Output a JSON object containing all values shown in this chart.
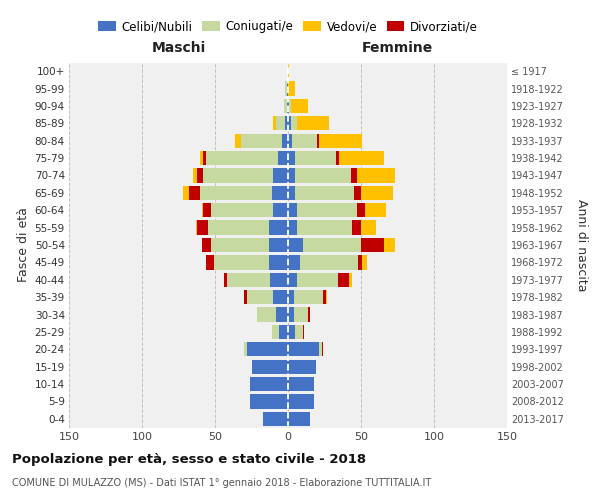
{
  "age_groups": [
    "0-4",
    "5-9",
    "10-14",
    "15-19",
    "20-24",
    "25-29",
    "30-34",
    "35-39",
    "40-44",
    "45-49",
    "50-54",
    "55-59",
    "60-64",
    "65-69",
    "70-74",
    "75-79",
    "80-84",
    "85-89",
    "90-94",
    "95-99",
    "100+"
  ],
  "birth_years": [
    "2013-2017",
    "2008-2012",
    "2003-2007",
    "1998-2002",
    "1993-1997",
    "1988-1992",
    "1983-1987",
    "1978-1982",
    "1973-1977",
    "1968-1972",
    "1963-1967",
    "1958-1962",
    "1953-1957",
    "1948-1952",
    "1943-1947",
    "1938-1942",
    "1933-1937",
    "1928-1932",
    "1923-1927",
    "1918-1922",
    "≤ 1917"
  ],
  "maschi": {
    "celibi": [
      17,
      26,
      26,
      25,
      28,
      6,
      8,
      10,
      12,
      13,
      13,
      13,
      10,
      11,
      10,
      7,
      4,
      2,
      1,
      1,
      0
    ],
    "coniugati": [
      0,
      0,
      0,
      0,
      2,
      5,
      13,
      18,
      30,
      38,
      40,
      42,
      43,
      49,
      48,
      49,
      28,
      6,
      2,
      1,
      0
    ],
    "vedovi": [
      0,
      0,
      0,
      0,
      0,
      0,
      0,
      0,
      0,
      0,
      0,
      1,
      1,
      4,
      3,
      2,
      4,
      2,
      0,
      0,
      0
    ],
    "divorziati": [
      0,
      0,
      0,
      0,
      0,
      0,
      0,
      2,
      2,
      5,
      6,
      7,
      5,
      8,
      4,
      2,
      0,
      0,
      0,
      0,
      0
    ]
  },
  "femmine": {
    "nubili": [
      15,
      18,
      18,
      19,
      21,
      5,
      4,
      4,
      6,
      8,
      10,
      6,
      6,
      5,
      5,
      5,
      3,
      2,
      1,
      0,
      0
    ],
    "coniugate": [
      0,
      0,
      0,
      0,
      2,
      5,
      10,
      20,
      28,
      40,
      40,
      38,
      41,
      40,
      38,
      28,
      17,
      4,
      1,
      0,
      0
    ],
    "vedove": [
      0,
      0,
      0,
      0,
      0,
      0,
      0,
      1,
      2,
      3,
      7,
      10,
      14,
      22,
      26,
      31,
      30,
      22,
      12,
      5,
      1
    ],
    "divorziate": [
      0,
      0,
      0,
      0,
      1,
      1,
      1,
      2,
      8,
      3,
      16,
      6,
      6,
      5,
      4,
      2,
      1,
      0,
      0,
      0,
      0
    ]
  },
  "colors": {
    "celibi": "#4472c4",
    "coniugati": "#c5d9a0",
    "vedovi": "#ffc000",
    "divorziati": "#c00000"
  },
  "legend_labels": [
    "Celibi/Nubili",
    "Coniugati/e",
    "Vedovi/e",
    "Divorziati/e"
  ],
  "title": "Popolazione per età, sesso e stato civile - 2018",
  "subtitle": "COMUNE DI MULAZZO (MS) - Dati ISTAT 1° gennaio 2018 - Elaborazione TUTTITALIA.IT",
  "xlabel_left": "Maschi",
  "xlabel_right": "Femmine",
  "ylabel_left": "Fasce di età",
  "ylabel_right": "Anni di nascita",
  "xlim": 150,
  "bg_color": "#ffffff",
  "plot_bg": "#f0f0f0",
  "grid_color": "#cccccc"
}
